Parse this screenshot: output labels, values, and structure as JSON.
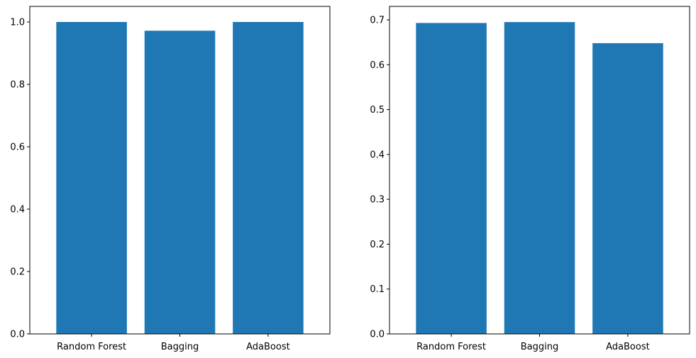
{
  "chart_data": [
    {
      "type": "bar",
      "categories": [
        "Random Forest",
        "Bagging",
        "AdaBoost"
      ],
      "values": [
        1.0,
        0.972,
        1.0
      ],
      "title": "",
      "xlabel": "",
      "ylabel": "",
      "ylim": [
        0,
        1.05
      ],
      "yticks": [
        0.0,
        0.2,
        0.4,
        0.6,
        0.8,
        1.0
      ],
      "ytick_labels": [
        "0.0",
        "0.2",
        "0.4",
        "0.6",
        "0.8",
        "1.0"
      ],
      "grid": false,
      "bar_color": "#1f77b4"
    },
    {
      "type": "bar",
      "categories": [
        "Random Forest",
        "Bagging",
        "AdaBoost"
      ],
      "values": [
        0.693,
        0.695,
        0.648
      ],
      "title": "",
      "xlabel": "",
      "ylabel": "",
      "ylim": [
        0,
        0.73
      ],
      "yticks": [
        0.0,
        0.1,
        0.2,
        0.3,
        0.4,
        0.5,
        0.6,
        0.7
      ],
      "ytick_labels": [
        "0.0",
        "0.1",
        "0.2",
        "0.3",
        "0.4",
        "0.5",
        "0.6",
        "0.7"
      ],
      "grid": false,
      "bar_color": "#1f77b4"
    }
  ]
}
